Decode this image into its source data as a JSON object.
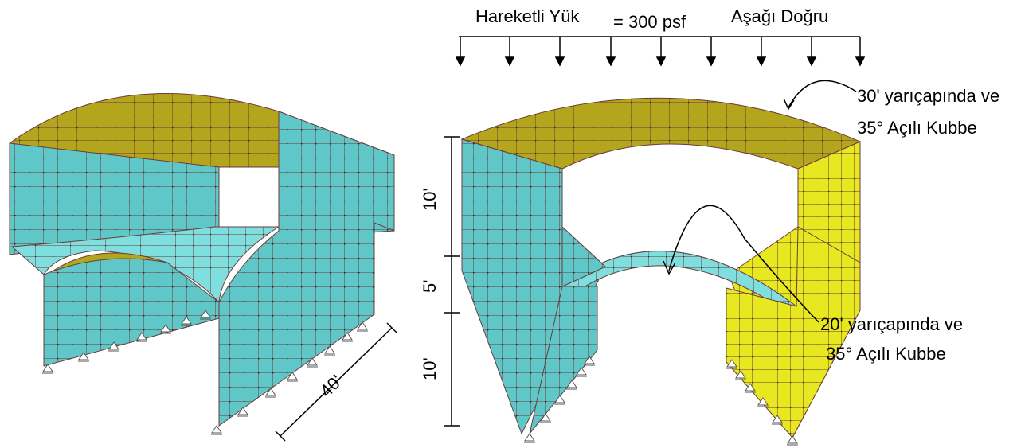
{
  "load": {
    "title": "Hareketli Yük",
    "value": "= 300 psf",
    "direction": "Aşağı Doğru"
  },
  "annotations": {
    "top_dome_line1": "30' yarıçapında ve",
    "top_dome_line2": "35° Açılı Kubbe",
    "lower_dome_line1": "20' yarıçapında ve",
    "lower_dome_line2": "35° Açılı Kubbe"
  },
  "dimensions": {
    "upper_height": "10'",
    "middle_height": "5'",
    "lower_height": "10'",
    "length": "40'"
  },
  "colors": {
    "wall": "#5fc7c7",
    "top_dome": "#b3a61d",
    "side_wall_right": "#e8e820",
    "mesh": "#6b3b3b"
  }
}
